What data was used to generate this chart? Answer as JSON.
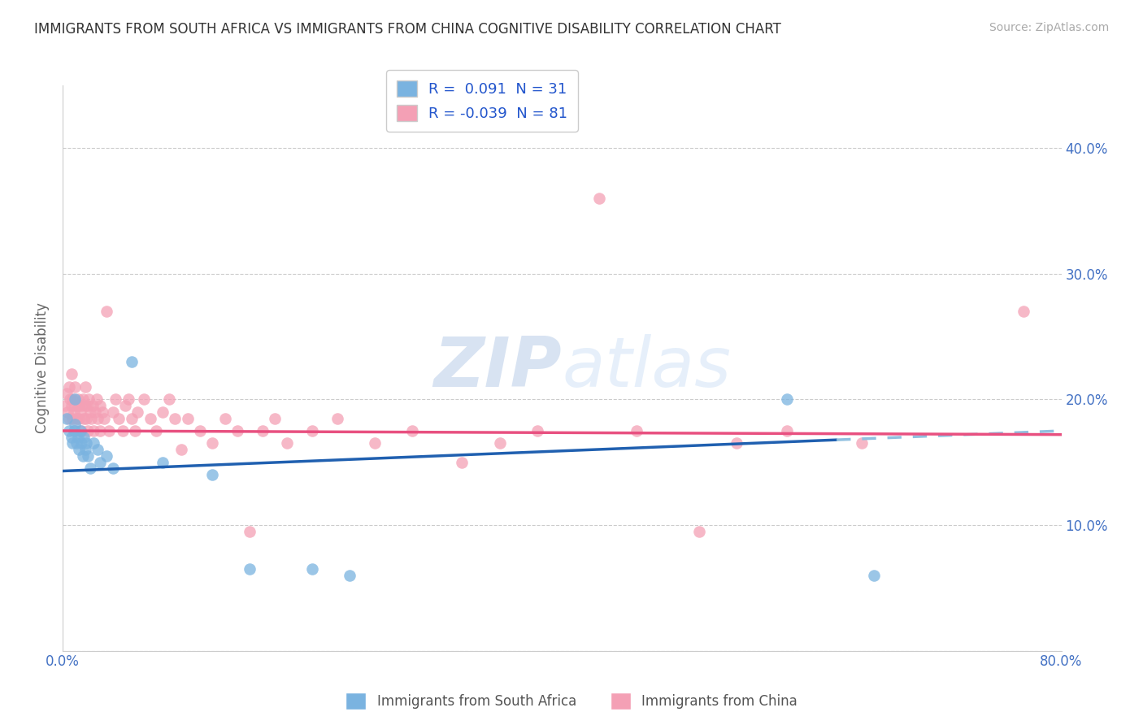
{
  "title": "IMMIGRANTS FROM SOUTH AFRICA VS IMMIGRANTS FROM CHINA COGNITIVE DISABILITY CORRELATION CHART",
  "source": "Source: ZipAtlas.com",
  "ylabel": "Cognitive Disability",
  "xlabel": "",
  "xlim": [
    0.0,
    0.8
  ],
  "ylim": [
    0.0,
    0.45
  ],
  "series1_label": "Immigrants from South Africa",
  "series2_label": "Immigrants from China",
  "series1_color": "#7ab3e0",
  "series2_color": "#f4a0b5",
  "series1_line_color": "#2060b0",
  "series2_line_color": "#e85080",
  "legend_R1": "R =  0.091",
  "legend_N1": "N = 31",
  "legend_R2": "R = -0.039",
  "legend_N2": "N = 81",
  "watermark": "ZIPatlas",
  "background_color": "#ffffff",
  "title_color": "#333333",
  "source_color": "#aaaaaa",
  "tick_color": "#4472c4",
  "ylabel_color": "#666666",
  "grid_color": "#cccccc",
  "series1_x": [
    0.003,
    0.005,
    0.007,
    0.008,
    0.009,
    0.01,
    0.01,
    0.011,
    0.012,
    0.013,
    0.014,
    0.015,
    0.016,
    0.017,
    0.018,
    0.019,
    0.02,
    0.022,
    0.025,
    0.028,
    0.03,
    0.035,
    0.04,
    0.055,
    0.08,
    0.12,
    0.15,
    0.2,
    0.23,
    0.58,
    0.65
  ],
  "series1_y": [
    0.185,
    0.175,
    0.17,
    0.165,
    0.175,
    0.18,
    0.2,
    0.165,
    0.17,
    0.16,
    0.175,
    0.165,
    0.155,
    0.17,
    0.16,
    0.165,
    0.155,
    0.145,
    0.165,
    0.16,
    0.15,
    0.155,
    0.145,
    0.23,
    0.15,
    0.14,
    0.065,
    0.065,
    0.06,
    0.2,
    0.06
  ],
  "series2_x": [
    0.002,
    0.003,
    0.004,
    0.005,
    0.005,
    0.006,
    0.007,
    0.007,
    0.008,
    0.008,
    0.009,
    0.01,
    0.01,
    0.01,
    0.011,
    0.012,
    0.012,
    0.013,
    0.014,
    0.015,
    0.015,
    0.016,
    0.017,
    0.018,
    0.018,
    0.019,
    0.02,
    0.02,
    0.021,
    0.022,
    0.023,
    0.024,
    0.025,
    0.026,
    0.027,
    0.028,
    0.03,
    0.03,
    0.032,
    0.033,
    0.035,
    0.037,
    0.04,
    0.042,
    0.045,
    0.048,
    0.05,
    0.053,
    0.055,
    0.058,
    0.06,
    0.065,
    0.07,
    0.075,
    0.08,
    0.085,
    0.09,
    0.095,
    0.1,
    0.11,
    0.12,
    0.13,
    0.14,
    0.15,
    0.16,
    0.17,
    0.18,
    0.2,
    0.22,
    0.25,
    0.28,
    0.32,
    0.35,
    0.38,
    0.43,
    0.46,
    0.51,
    0.54,
    0.58,
    0.64,
    0.77
  ],
  "series2_y": [
    0.195,
    0.205,
    0.19,
    0.185,
    0.21,
    0.2,
    0.195,
    0.22,
    0.185,
    0.2,
    0.19,
    0.175,
    0.195,
    0.21,
    0.185,
    0.195,
    0.2,
    0.185,
    0.19,
    0.175,
    0.195,
    0.2,
    0.185,
    0.195,
    0.21,
    0.185,
    0.175,
    0.195,
    0.2,
    0.19,
    0.185,
    0.195,
    0.175,
    0.19,
    0.2,
    0.185,
    0.175,
    0.195,
    0.19,
    0.185,
    0.27,
    0.175,
    0.19,
    0.2,
    0.185,
    0.175,
    0.195,
    0.2,
    0.185,
    0.175,
    0.19,
    0.2,
    0.185,
    0.175,
    0.19,
    0.2,
    0.185,
    0.16,
    0.185,
    0.175,
    0.165,
    0.185,
    0.175,
    0.095,
    0.175,
    0.185,
    0.165,
    0.175,
    0.185,
    0.165,
    0.175,
    0.15,
    0.165,
    0.175,
    0.36,
    0.175,
    0.095,
    0.165,
    0.175,
    0.165,
    0.27
  ],
  "trendline1_x0": 0.0,
  "trendline1_y0": 0.143,
  "trendline1_x1": 0.8,
  "trendline1_y1": 0.175,
  "trendline1_dash_start": 0.62,
  "trendline2_x0": 0.0,
  "trendline2_y0": 0.175,
  "trendline2_x1": 0.8,
  "trendline2_y1": 0.172
}
